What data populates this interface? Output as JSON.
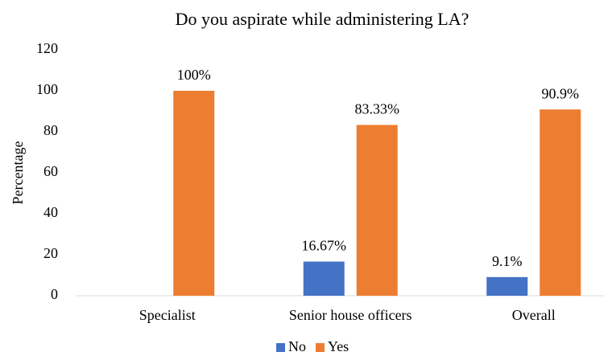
{
  "chart_data": {
    "type": "bar",
    "title": "Do you aspirate while administering LA?",
    "y_label": "Percentage",
    "categories": [
      "Specialist",
      "Senior house officers",
      "Overall"
    ],
    "series": [
      {
        "name": "No",
        "color": "#4472c4",
        "values": [
          0,
          16.67,
          9.1
        ],
        "value_labels": [
          null,
          "16.67%",
          "9.1%"
        ]
      },
      {
        "name": "Yes",
        "color": "#ed7d31",
        "values": [
          100,
          83.33,
          90.9
        ],
        "value_labels": [
          "100%",
          "83.33%",
          "90.9%"
        ]
      }
    ],
    "ylim": [
      0,
      120
    ],
    "yticks": [
      0,
      20,
      40,
      60,
      80,
      100,
      120
    ],
    "grid": false,
    "legend": "bottom"
  }
}
